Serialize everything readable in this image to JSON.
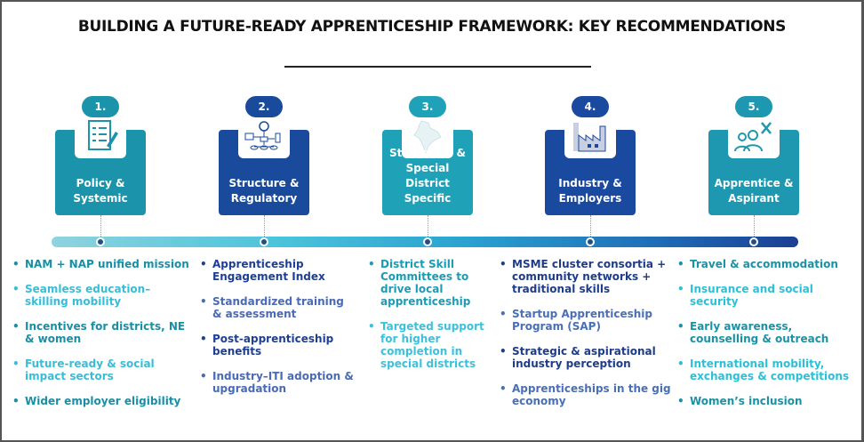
{
  "title": "BUILDING A FUTURE-READY APPRENTICESHIP FRAMEWORK: KEY RECOMMENDATIONS",
  "pillars": [
    {
      "number": "1.",
      "label": "Policy & Systemic",
      "icon": "checklist-document-icon",
      "color": "#1b93ab",
      "items": [
        "NAM + NAP unified mission",
        "Seamless education–skilling mobility",
        "Incentives for districts, NE & women",
        "Future-ready & social impact sectors",
        "Wider employer eligibility"
      ],
      "item_colors": [
        "#1a8ea5",
        "#38bdd8"
      ]
    },
    {
      "number": "2.",
      "label": "Structure & Regulatory",
      "icon": "flowchart-structure-icon",
      "color": "#1a4a9c",
      "items": [
        "Apprenticeship Engagement Index",
        "Standardized training & assessment",
        "Post-apprenticeship benefits",
        "Industry–ITI adoption & upgradation"
      ],
      "item_colors": [
        "#1e3f94",
        "#4a6ab5"
      ]
    },
    {
      "number": "3.",
      "label": "States/UTs & Special District Specific",
      "icon": "india-map-icon",
      "color": "#1fa2b8",
      "items": [
        "District Skill Committees to drive local apprenticeship",
        "Targeted support for higher completion in special districts"
      ],
      "item_colors": [
        "#1c9bb5",
        "#3cc0dc"
      ]
    },
    {
      "number": "4.",
      "label": "Industry & Employers",
      "icon": "factory-icon",
      "color": "#1a4aa0",
      "items": [
        "MSME cluster consortia + community networks + traditional skills",
        "Startup Apprenticeship Program (SAP)",
        "Strategic & aspirational industry perception",
        "Apprenticeships in the gig economy"
      ],
      "item_colors": [
        "#1f3c88",
        "#4a6fb5"
      ]
    },
    {
      "number": "5.",
      "label": "Apprentice & Aspirant",
      "icon": "people-tools-icon",
      "color": "#1e98b0",
      "items": [
        "Travel & accommodation",
        "Insurance and social security",
        "Early awareness, counselling & outreach",
        "International mobility, exchanges & competitions",
        "Women’s inclusion"
      ],
      "item_colors": [
        "#1a92a6",
        "#2cc0d8"
      ]
    }
  ]
}
